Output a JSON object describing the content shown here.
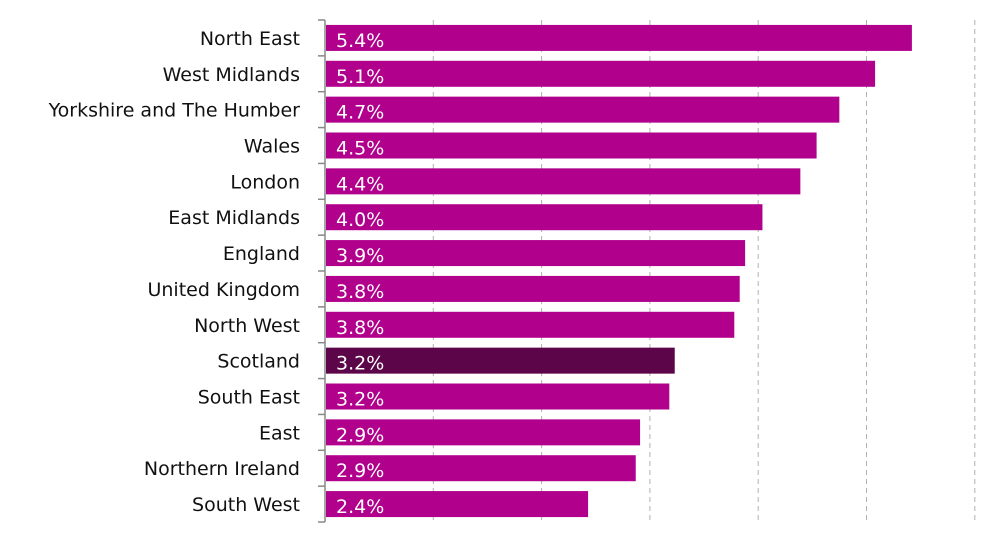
{
  "chart_data": {
    "type": "bar",
    "orientation": "horizontal",
    "categories": [
      "North East",
      "West Midlands",
      "Yorkshire and The Humber",
      "Wales",
      "London",
      "East Midlands",
      "England",
      "United Kingdom",
      "North West",
      "Scotland",
      "South East",
      "East",
      "Northern Ireland",
      "South West"
    ],
    "values": [
      5.41,
      5.07,
      4.74,
      4.53,
      4.38,
      4.03,
      3.87,
      3.82,
      3.77,
      3.22,
      3.17,
      2.9,
      2.86,
      2.42
    ],
    "value_labels": [
      "5.4%",
      "5.1%",
      "4.7%",
      "4.5%",
      "4.4%",
      "4.0%",
      "3.9%",
      "3.8%",
      "3.8%",
      "3.2%",
      "3.2%",
      "2.9%",
      "2.9%",
      "2.4%"
    ],
    "xlim": [
      0,
      6
    ],
    "grid": "vertical dashed",
    "highlight_category": "Scotland",
    "colors": {
      "bar": "#b0008c",
      "highlight": "#5c0549",
      "grid": "#b0b0b0",
      "axis": "#888888"
    }
  }
}
